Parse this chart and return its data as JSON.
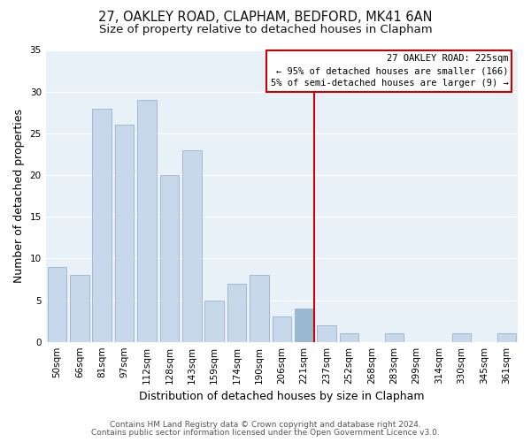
{
  "title": "27, OAKLEY ROAD, CLAPHAM, BEDFORD, MK41 6AN",
  "subtitle": "Size of property relative to detached houses in Clapham",
  "xlabel": "Distribution of detached houses by size in Clapham",
  "ylabel": "Number of detached properties",
  "bar_labels": [
    "50sqm",
    "66sqm",
    "81sqm",
    "97sqm",
    "112sqm",
    "128sqm",
    "143sqm",
    "159sqm",
    "174sqm",
    "190sqm",
    "206sqm",
    "221sqm",
    "237sqm",
    "252sqm",
    "268sqm",
    "283sqm",
    "299sqm",
    "314sqm",
    "330sqm",
    "345sqm",
    "361sqm"
  ],
  "bar_values": [
    9,
    8,
    28,
    26,
    29,
    20,
    23,
    5,
    7,
    8,
    3,
    4,
    2,
    1,
    0,
    1,
    0,
    0,
    1,
    0,
    1
  ],
  "bar_color": "#c8d8eb",
  "bar_edge_color": "#9ab4cc",
  "highlight_bar_index": 11,
  "highlight_bar_color": "#9ab8d0",
  "vline_color": "#cc0000",
  "vline_bar_index": 11,
  "ylim": [
    0,
    35
  ],
  "yticks": [
    0,
    5,
    10,
    15,
    20,
    25,
    30,
    35
  ],
  "annotation_title": "27 OAKLEY ROAD: 225sqm",
  "annotation_line1": "← 95% of detached houses are smaller (166)",
  "annotation_line2": "5% of semi-detached houses are larger (9) →",
  "footer_line1": "Contains HM Land Registry data © Crown copyright and database right 2024.",
  "footer_line2": "Contains public sector information licensed under the Open Government Licence v3.0.",
  "background_color": "#ffffff",
  "plot_bg_color": "#e8f0f8",
  "grid_color": "#ffffff",
  "title_fontsize": 10.5,
  "subtitle_fontsize": 9.5,
  "axis_label_fontsize": 9,
  "tick_fontsize": 7.5,
  "footer_fontsize": 6.5
}
